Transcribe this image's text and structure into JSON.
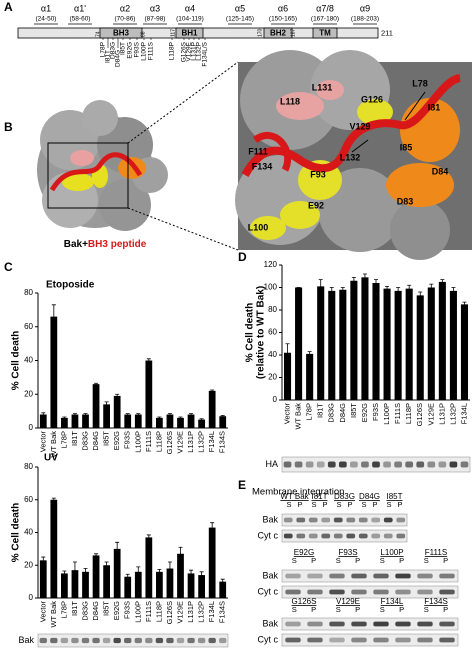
{
  "panel_labels": [
    "A",
    "B",
    "C",
    "D",
    "E"
  ],
  "domain_map": {
    "helices": [
      {
        "name": "α1",
        "range": "(24-50)"
      },
      {
        "name": "α1'",
        "range": "(58-60)"
      },
      {
        "name": "α2",
        "range": "(70-86)"
      },
      {
        "name": "α3",
        "range": "(87-98)"
      },
      {
        "name": "α4",
        "range": "(104-119)"
      },
      {
        "name": "α5",
        "range": "(125-145)"
      },
      {
        "name": "α6",
        "range": "(150-165)"
      },
      {
        "name": "α7/8",
        "range": "(167-180)"
      },
      {
        "name": "α9",
        "range": "(188-203)"
      }
    ],
    "domains": [
      "BH3",
      "BH1",
      "BH2",
      "TM"
    ],
    "residue_marks": [
      74,
      88,
      117,
      170,
      187
    ],
    "length": 211,
    "mutations": [
      "L78P",
      "I81T",
      "D83G",
      "D84G",
      "I85T",
      "E92G",
      "F93S",
      "L100P",
      "F111S",
      "L118P",
      "G126S",
      "V129E",
      "L131P",
      "L132P",
      "F134L/S"
    ]
  },
  "structure": {
    "legend": [
      "Bak+",
      "BH3 peptide"
    ],
    "residues": [
      "L131",
      "L78",
      "L118",
      "G126",
      "I81",
      "V129",
      "I85",
      "F111",
      "L132",
      "F134",
      "D84",
      "F93",
      "D83",
      "E92",
      "L100"
    ]
  },
  "chart_data": [
    {
      "type": "bar",
      "title": "Etoposide",
      "y_label": "% Cell death",
      "color": "#000000",
      "categories": [
        "Vector",
        "WT Bak",
        "L78P",
        "I81T",
        "D83G",
        "D84G",
        "I85T",
        "E92G",
        "F93S",
        "L100P",
        "F111S",
        "L118P",
        "G126S",
        "V129E",
        "L131P",
        "L132P",
        "F134L",
        "F134S"
      ],
      "values": [
        8,
        66,
        6,
        8,
        8,
        26,
        14,
        19,
        8,
        8,
        40,
        6,
        8,
        6,
        8,
        5,
        22,
        7
      ],
      "errors": [
        1,
        7,
        0.5,
        0.5,
        0.5,
        0.5,
        1.5,
        1,
        0.5,
        0.5,
        1,
        0.5,
        0.5,
        0.5,
        0.5,
        0.5,
        0.5,
        0.5
      ],
      "ylim": [
        0,
        80
      ],
      "yticks": [
        0,
        20,
        40,
        60,
        80
      ]
    },
    {
      "type": "bar",
      "title": "UV",
      "y_label": "% Cell death",
      "color": "#000000",
      "categories": [
        "Vector",
        "WT Bak",
        "L78P",
        "I81T",
        "D83G",
        "D84G",
        "I85T",
        "E92G",
        "F93S",
        "L100P",
        "F111S",
        "L118P",
        "G126S",
        "V129E",
        "L131P",
        "L132P",
        "F134L",
        "F134S"
      ],
      "values": [
        23,
        60,
        15,
        17,
        16,
        26,
        20,
        30,
        13,
        16,
        37,
        16,
        18,
        27,
        15,
        14,
        43,
        10
      ],
      "errors": [
        2,
        1,
        1.5,
        5,
        2,
        1,
        2,
        4,
        1.5,
        3,
        1.5,
        1.5,
        4,
        4,
        2,
        2,
        3,
        1.5
      ],
      "ylim": [
        0,
        80
      ],
      "yticks": [
        0,
        20,
        40,
        60,
        80
      ]
    },
    {
      "type": "bar",
      "y_label": [
        "% Cell death",
        "(relative to WT Bak)"
      ],
      "color": "#000000",
      "categories": [
        "Vector",
        "WT Bak",
        "L78P",
        "I81T",
        "D83G",
        "D84G",
        "I85T",
        "E92G",
        "F93S",
        "L100P",
        "F111S",
        "L118P",
        "G126S",
        "V129E",
        "L131P",
        "L132P",
        "F134L"
      ],
      "values": [
        42,
        100,
        41,
        101,
        97,
        98,
        106,
        109,
        104,
        99,
        97,
        99,
        93,
        100,
        105,
        97,
        85
      ],
      "errors": [
        8,
        0,
        2,
        6,
        3,
        2,
        3,
        3,
        3,
        2,
        3,
        3,
        3,
        3,
        2,
        3,
        2
      ],
      "ylim": [
        0,
        120
      ],
      "yticks": [
        0,
        20,
        40,
        60,
        80,
        100,
        120
      ]
    }
  ],
  "blots": {
    "c_label": "Bak",
    "d_label": "HA"
  },
  "membrane_integration": {
    "title": "Membrane integration",
    "fractions": [
      "S",
      "P"
    ],
    "rows": [
      "Bak",
      "Cyt c"
    ],
    "groups": [
      [
        "WT Bak",
        "I81T",
        "D83G",
        "D84G",
        "I85T"
      ],
      [
        "E92G",
        "F93S",
        "L100P",
        "F111S"
      ],
      [
        "G126S",
        "V129E",
        "F134L",
        "F134S"
      ]
    ]
  }
}
